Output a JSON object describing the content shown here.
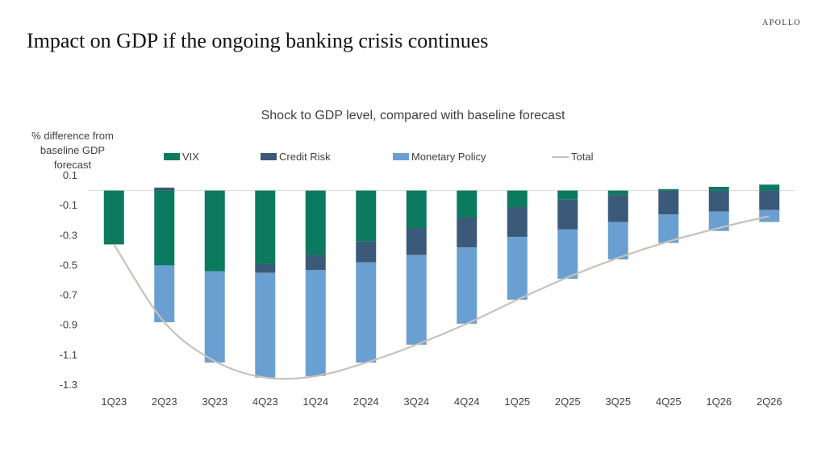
{
  "header": {
    "brand": "APOLLO",
    "title": "Impact on GDP if  the ongoing banking crisis continues"
  },
  "chart_data": {
    "type": "bar",
    "stacked": true,
    "title": "Shock to GDP level, compared with baseline forecast",
    "ylabel": "% difference from baseline GDP forecast",
    "xlabel": "",
    "categories": [
      "1Q23",
      "2Q23",
      "3Q23",
      "4Q23",
      "1Q24",
      "2Q24",
      "3Q24",
      "4Q24",
      "1Q25",
      "2Q25",
      "3Q25",
      "4Q25",
      "1Q26",
      "2Q26"
    ],
    "ylim": [
      -1.3,
      0.1
    ],
    "yticks": [
      0.1,
      -0.1,
      -0.3,
      -0.5,
      -0.7,
      -0.9,
      -1.1,
      -1.3
    ],
    "series": [
      {
        "name": "VIX",
        "color": "#0b7a5e",
        "values": [
          -0.36,
          -0.5,
          -0.54,
          -0.49,
          -0.43,
          -0.34,
          -0.25,
          -0.18,
          -0.11,
          -0.06,
          -0.03,
          0.01,
          0.025,
          0.04
        ]
      },
      {
        "name": "Credit Risk",
        "color": "#3b5978",
        "values": [
          0.0,
          0.02,
          0.0,
          -0.06,
          -0.1,
          -0.14,
          -0.18,
          -0.2,
          -0.2,
          -0.2,
          -0.18,
          -0.16,
          -0.14,
          -0.13
        ]
      },
      {
        "name": "Monetary Policy",
        "color": "#6a9fd2",
        "values": [
          0.0,
          -0.38,
          -0.61,
          -0.7,
          -0.71,
          -0.67,
          -0.6,
          -0.51,
          -0.42,
          -0.33,
          -0.25,
          -0.19,
          -0.13,
          -0.08
        ]
      }
    ],
    "line_series": {
      "name": "Total",
      "color": "#c8c2b8",
      "values": [
        -0.36,
        -0.88,
        -1.14,
        -1.25,
        -1.24,
        -1.15,
        -1.03,
        -0.89,
        -0.73,
        -0.58,
        -0.45,
        -0.34,
        -0.25,
        -0.17
      ]
    },
    "legend_position": "top"
  }
}
